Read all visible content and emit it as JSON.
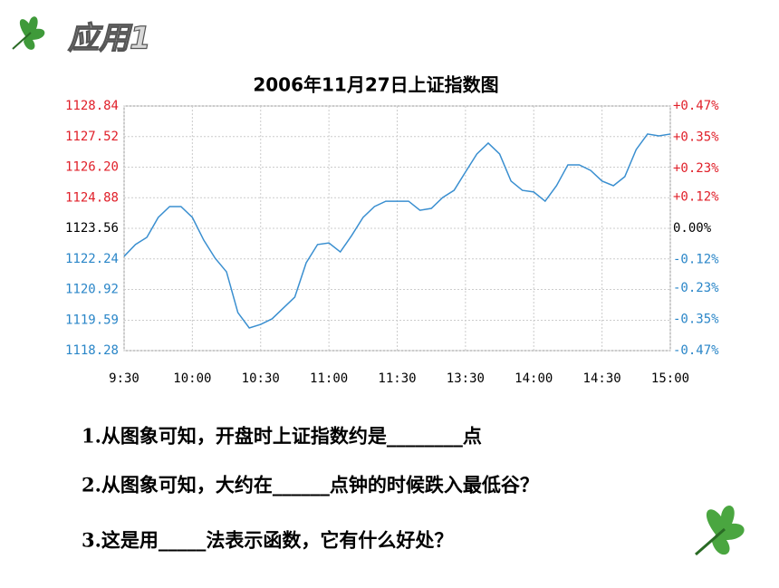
{
  "header": "应用1",
  "questions": [
    "1.从图象可知，开盘时上证指数约是________点",
    "2.从图象可知，大约在______点钟的时候跌入最低谷？",
    "3.这是用_____法表示函数，它有什么好处？"
  ],
  "chart_data": {
    "type": "line",
    "title": "2006年11月27日上证指数图",
    "x": [
      0,
      5,
      10,
      15,
      20,
      25,
      30,
      35,
      40,
      45,
      50,
      55,
      60,
      65,
      70,
      75,
      80,
      85,
      90,
      95,
      100,
      105,
      110,
      115,
      120,
      125,
      130,
      135,
      140,
      145,
      150,
      155,
      160,
      165,
      170,
      175,
      180,
      185,
      190,
      195,
      200,
      205,
      210,
      215,
      220,
      225,
      230,
      235,
      240
    ],
    "series": [
      {
        "name": "上证指数",
        "color": "#3a8fd0",
        "values": [
          1122.35,
          1122.86,
          1123.17,
          1124.03,
          1124.5,
          1124.5,
          1124.03,
          1123.05,
          1122.27,
          1121.68,
          1119.92,
          1119.26,
          1119.41,
          1119.65,
          1120.12,
          1120.59,
          1122.07,
          1122.86,
          1122.93,
          1122.54,
          1123.25,
          1124.03,
          1124.5,
          1124.73,
          1124.73,
          1124.73,
          1124.34,
          1124.42,
          1124.89,
          1125.2,
          1125.99,
          1126.77,
          1127.24,
          1126.77,
          1125.6,
          1125.2,
          1125.13,
          1124.73,
          1125.4,
          1126.3,
          1126.3,
          1126.06,
          1125.6,
          1125.4,
          1125.79,
          1126.96,
          1127.63,
          1127.55,
          1127.63
        ]
      }
    ],
    "xlim": [
      0,
      240
    ],
    "xticks": [
      {
        "value": 0,
        "label": "9:30"
      },
      {
        "value": 30,
        "label": "10:00"
      },
      {
        "value": 60,
        "label": "10:30"
      },
      {
        "value": 90,
        "label": "11:00"
      },
      {
        "value": 120,
        "label": "11:30"
      },
      {
        "value": 150,
        "label": "13:30"
      },
      {
        "value": 180,
        "label": "14:00"
      },
      {
        "value": 210,
        "label": "14:30"
      },
      {
        "value": 240,
        "label": "15:00"
      }
    ],
    "ylim": [
      1118.28,
      1128.84
    ],
    "yticks": [
      1128.84,
      1127.52,
      {
        "value": 1126.2,
        "label": "1126.20"
      },
      1124.88,
      1123.56,
      1122.24,
      1120.92,
      1119.59,
      1118.28
    ],
    "y2lim": [
      -0.47,
      0.47
    ],
    "y2ticks": [
      {
        "value": 0.47,
        "label": "+0.47%"
      },
      {
        "value": 0.35,
        "label": "+0.35%"
      },
      {
        "value": 0.23,
        "label": "+0.23%"
      },
      {
        "value": 0.12,
        "label": "+0.12%"
      },
      {
        "value": 0,
        "label": "0.00%"
      },
      {
        "value": -0.12,
        "label": "-0.12%"
      },
      {
        "value": -0.23,
        "label": "-0.23%"
      },
      {
        "value": -0.35,
        "label": "-0.35%"
      },
      {
        "value": -0.47,
        "label": "-0.47%"
      }
    ],
    "grid": true
  }
}
